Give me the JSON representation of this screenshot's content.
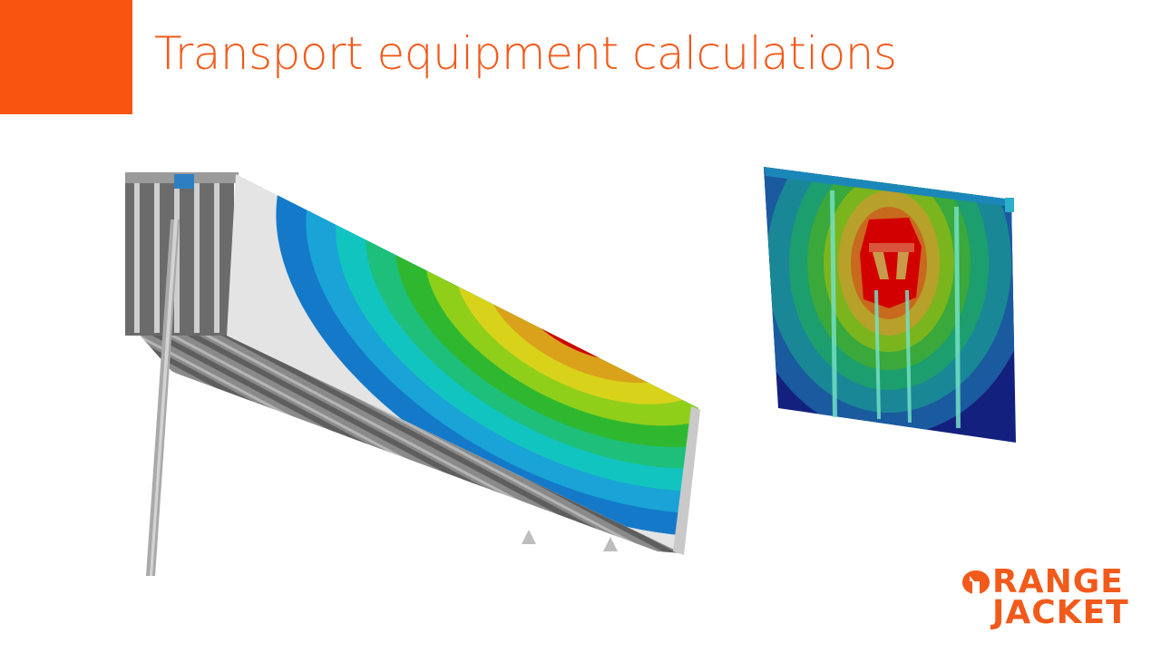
{
  "slide": {
    "title": "Transport equipment calculations",
    "accent_color": "#F95410"
  },
  "figures": {
    "left": "fea-contour-trailer-body",
    "right": "fea-contour-panel"
  },
  "logo": {
    "line1": "RANGE",
    "line2": "JACKET",
    "color": "#F25A1B"
  }
}
